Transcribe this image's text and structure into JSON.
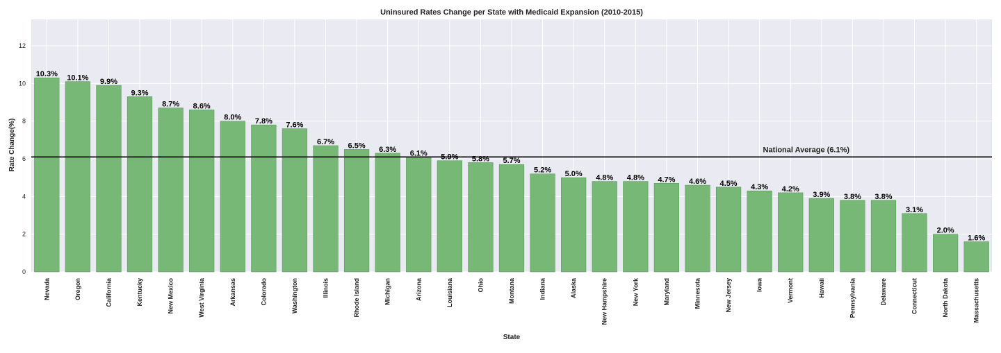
{
  "chart_data": {
    "type": "bar",
    "title": "Uninsured Rates Change per State with Medicaid Expansion (2010-2015)",
    "xlabel": "State",
    "ylabel": "Rate Change(%)",
    "ylim": [
      0,
      13.4
    ],
    "yticks": [
      0,
      2,
      4,
      6,
      8,
      10,
      12
    ],
    "grid": true,
    "categories": [
      "Nevada",
      "Oregon",
      "California",
      "Kentucky",
      "New Mexico",
      "West Virginia",
      "Arkansas",
      "Colorado",
      "Washington",
      "Illinois",
      "Rhode Island",
      "Michigan",
      "Arizona",
      "Louisiana",
      "Ohio",
      "Montana",
      "Indiana",
      "Alaska",
      "New Hampshire",
      "New York",
      "Maryland",
      "Minnesota",
      "New Jersey",
      "Iowa",
      "Vermont",
      "Hawaii",
      "Pennsylvania",
      "Delaware",
      "Connecticut",
      "North Dakota",
      "Massachusetts"
    ],
    "values": [
      10.3,
      10.1,
      9.9,
      9.3,
      8.7,
      8.6,
      8.0,
      7.8,
      7.6,
      6.7,
      6.5,
      6.3,
      6.1,
      5.9,
      5.8,
      5.7,
      5.2,
      5.0,
      4.8,
      4.8,
      4.7,
      4.6,
      4.5,
      4.3,
      4.2,
      3.9,
      3.8,
      3.8,
      3.1,
      2.0,
      1.6
    ],
    "value_labels": [
      "10.3%",
      "10.1%",
      "9.9%",
      "9.3%",
      "8.7%",
      "8.6%",
      "8.0%",
      "7.8%",
      "7.6%",
      "6.7%",
      "6.5%",
      "6.3%",
      "6.1%",
      "5.9%",
      "5.8%",
      "5.7%",
      "5.2%",
      "5.0%",
      "4.8%",
      "4.8%",
      "4.7%",
      "4.6%",
      "4.5%",
      "4.3%",
      "4.2%",
      "3.9%",
      "3.8%",
      "3.8%",
      "3.1%",
      "2.0%",
      "1.6%"
    ],
    "reference_line": {
      "value": 6.1,
      "label": "National Average (6.1%)"
    },
    "colors": {
      "bar": "#77b877",
      "bar_edge": "#5a9a5a",
      "background": "#eaeaf2",
      "grid": "#ffffff",
      "reference_line": "#000000"
    }
  }
}
